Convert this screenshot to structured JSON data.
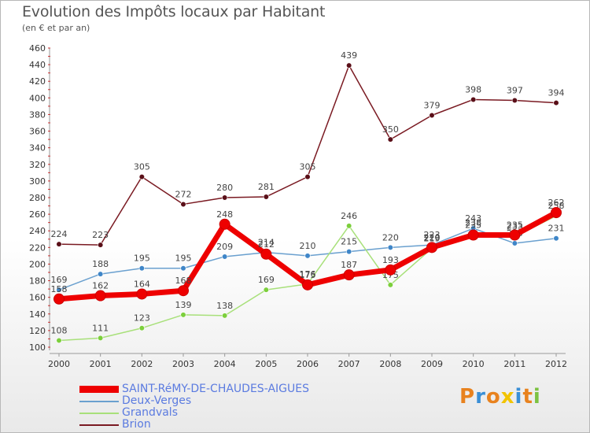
{
  "chart_data": {
    "type": "line",
    "title": "Evolution des Impôts locaux par Habitant",
    "subtitle": "(en € et par an)",
    "categories": [
      "2000",
      "2001",
      "2002",
      "2003",
      "2004",
      "2005",
      "2006",
      "2007",
      "2008",
      "2009",
      "2010",
      "2011",
      "2012"
    ],
    "ylim": [
      100,
      460
    ],
    "yticks": [
      100,
      120,
      140,
      160,
      180,
      200,
      220,
      240,
      260,
      280,
      300,
      320,
      340,
      360,
      380,
      400,
      420,
      440,
      460
    ],
    "grid": false,
    "legend_position": "bottom-left",
    "series": [
      {
        "name": "Brion",
        "color": "#7a1a22",
        "markerColor": "#5a0f18",
        "values": [
          224,
          223,
          305,
          272,
          280,
          281,
          305,
          439,
          350,
          379,
          398,
          397,
          394
        ]
      },
      {
        "name": "Deux-Verges",
        "color": "#6aa0cf",
        "markerColor": "#3f86c8",
        "values": [
          169,
          188,
          195,
          195,
          209,
          214,
          210,
          215,
          220,
          223,
          243,
          225,
          231
        ]
      },
      {
        "name": "Grandvals",
        "color": "#a8e07a",
        "markerColor": "#7ccf3c",
        "values": [
          108,
          111,
          123,
          139,
          138,
          169,
          176,
          246,
          175,
          219,
          238,
          233,
          258
        ]
      },
      {
        "name": "SAINT-RéMY-DE-CHAUDES-AIGUES",
        "color": "#ee0000",
        "markerColor": "#cc0000",
        "values": [
          158,
          162,
          164,
          168,
          248,
          212,
          175,
          187,
          193,
          220,
          235,
          235,
          262
        ]
      }
    ],
    "legend_order": [
      "SAINT-RéMY-DE-CHAUDES-AIGUES",
      "Deux-Verges",
      "Grandvals",
      "Brion"
    ]
  },
  "logo": {
    "text": "Proxiti",
    "colors": [
      "#e8821e",
      "#3a8fd6",
      "#e8821e",
      "#f2c400",
      "#3a8fd6",
      "#e8821e",
      "#7cc242"
    ]
  }
}
